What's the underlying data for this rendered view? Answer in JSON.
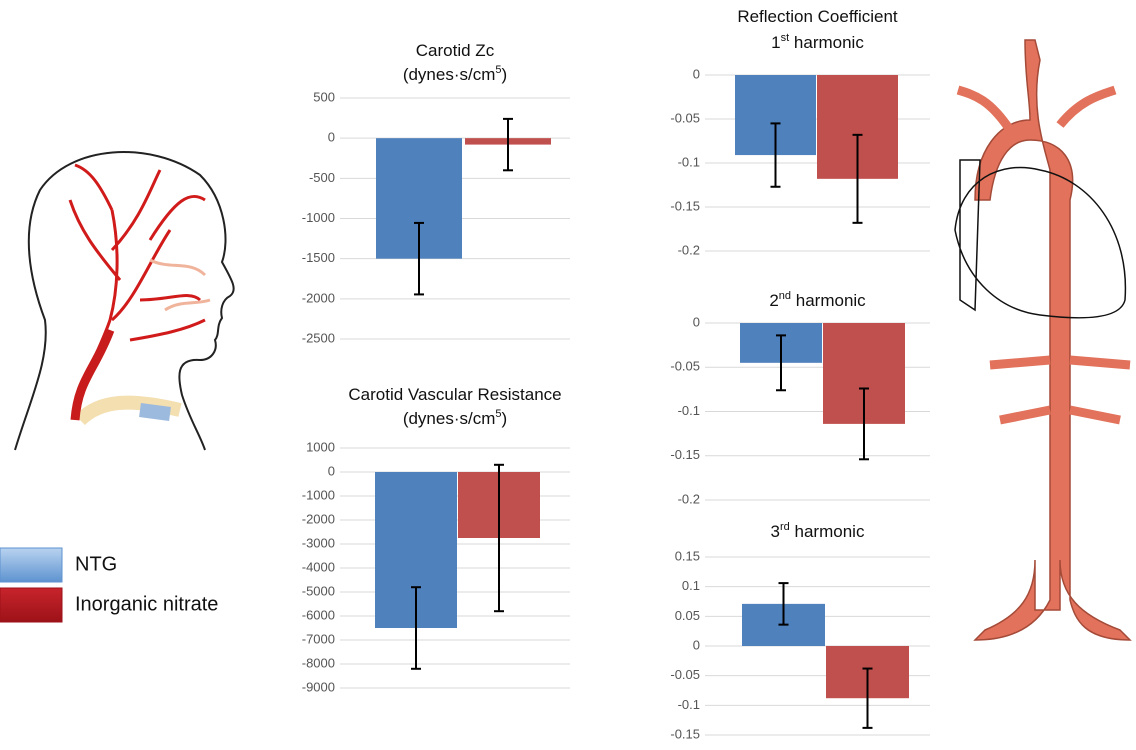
{
  "chart_data": [
    {
      "type": "bar",
      "title": [
        [
          {
            "text": "Carotid Zc"
          }
        ],
        [
          {
            "text": "(dynes·s/cm"
          },
          {
            "sup": "5"
          },
          {
            "text": ")"
          }
        ]
      ],
      "ylim": [
        -2500,
        500
      ],
      "yticks": [
        500,
        0,
        -500,
        -1000,
        -1500,
        -2000,
        -2500
      ],
      "grid": true,
      "series": [
        {
          "name": "NTG",
          "color": "#4f81bd",
          "values": [
            -1500
          ],
          "errors": [
            445
          ]
        },
        {
          "name": "Inorganic nitrate",
          "color": "#c0504d",
          "values": [
            -80
          ],
          "errors": [
            320
          ]
        }
      ]
    },
    {
      "type": "bar",
      "title": [
        [
          {
            "text": "Carotid Vascular Resistance"
          }
        ],
        [
          {
            "text": "(dynes·s/cm"
          },
          {
            "sup": "5"
          },
          {
            "text": ")"
          }
        ]
      ],
      "ylim": [
        -9000,
        1000
      ],
      "yticks": [
        1000,
        0,
        -1000,
        -2000,
        -3000,
        -4000,
        -5000,
        -6000,
        -7000,
        -8000,
        -9000
      ],
      "grid": true,
      "series": [
        {
          "name": "NTG",
          "color": "#4f81bd",
          "values": [
            -6500
          ],
          "errors": [
            1700
          ]
        },
        {
          "name": "Inorganic nitrate",
          "color": "#c0504d",
          "values": [
            -2750
          ],
          "errors": [
            3050
          ]
        }
      ]
    },
    {
      "type": "bar",
      "title": [
        [
          {
            "text": "Reflection Coefficient"
          }
        ],
        [
          {
            "text": "1"
          },
          {
            "sup": "st"
          },
          {
            "text": " harmonic"
          }
        ]
      ],
      "ylim": [
        -0.2,
        0
      ],
      "yticks": [
        0,
        -0.05,
        -0.1,
        -0.15,
        -0.2
      ],
      "grid": true,
      "series": [
        {
          "name": "NTG",
          "color": "#4f81bd",
          "values": [
            -0.091
          ],
          "errors": [
            0.036
          ]
        },
        {
          "name": "Inorganic nitrate",
          "color": "#c0504d",
          "values": [
            -0.118
          ],
          "errors": [
            0.05
          ]
        }
      ]
    },
    {
      "type": "bar",
      "title": [
        [
          {
            "text": "2"
          },
          {
            "sup": "nd"
          },
          {
            "text": " harmonic"
          }
        ]
      ],
      "ylim": [
        -0.2,
        0
      ],
      "yticks": [
        0,
        -0.05,
        -0.1,
        -0.15,
        -0.2
      ],
      "grid": true,
      "series": [
        {
          "name": "NTG",
          "color": "#4f81bd",
          "values": [
            -0.045
          ],
          "errors": [
            0.031
          ]
        },
        {
          "name": "Inorganic nitrate",
          "color": "#c0504d",
          "values": [
            -0.114
          ],
          "errors": [
            0.04
          ]
        }
      ]
    },
    {
      "type": "bar",
      "title": [
        [
          {
            "text": "3"
          },
          {
            "sup": "rd"
          },
          {
            "text": " harmonic"
          }
        ]
      ],
      "ylim": [
        -0.15,
        0.15
      ],
      "yticks": [
        0.15,
        0.1,
        0.05,
        0,
        -0.05,
        -0.1,
        -0.15
      ],
      "grid": true,
      "series": [
        {
          "name": "NTG",
          "color": "#4f81bd",
          "values": [
            0.071
          ],
          "errors": [
            0.035
          ]
        },
        {
          "name": "Inorganic nitrate",
          "color": "#c0504d",
          "values": [
            -0.088
          ],
          "errors": [
            0.05
          ]
        }
      ]
    }
  ]
}
